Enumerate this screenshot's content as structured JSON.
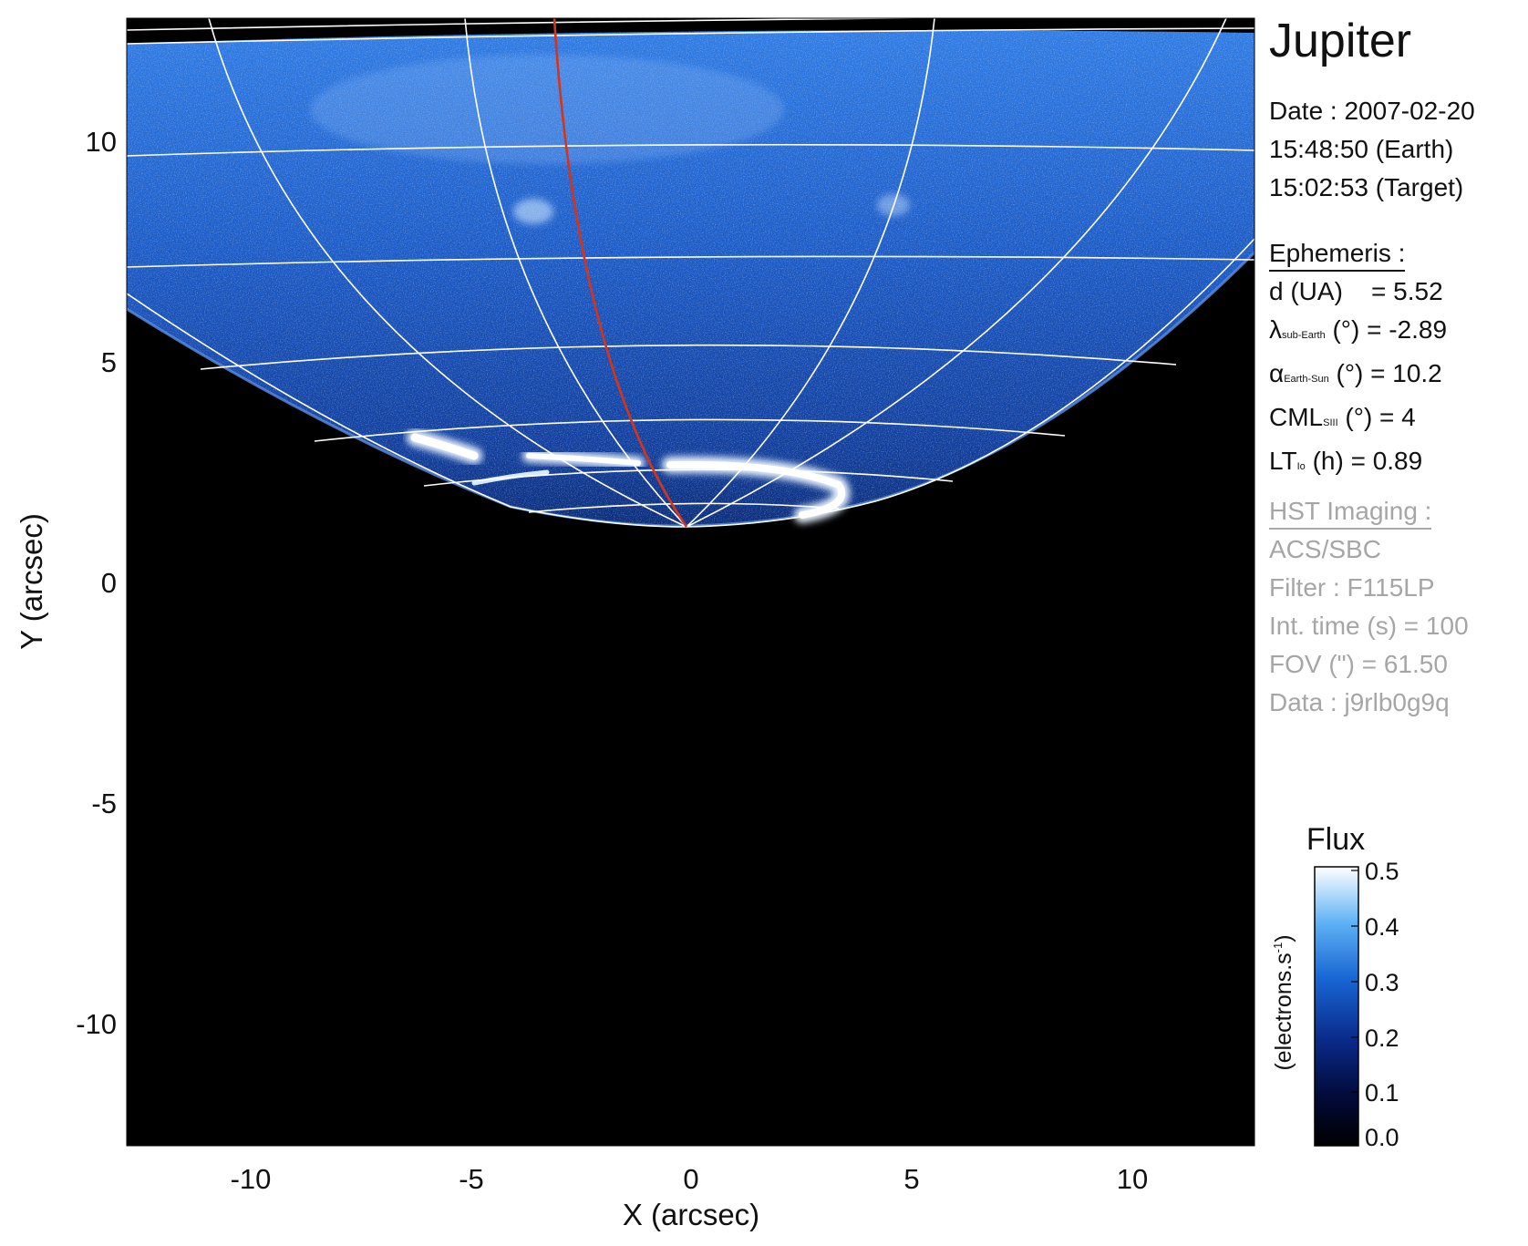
{
  "title": "Jupiter",
  "date": {
    "line1": "Date : 2007-02-20",
    "line2": "15:48:50 (Earth)",
    "line3": "15:02:53 (Target)"
  },
  "ephemeris": {
    "header": "Ephemeris :",
    "d_label": "d (UA)",
    "d_value": "= 5.52",
    "lambda_sym": "λ",
    "lambda_sub": "sub-Earth",
    "lambda_rest": "(°) = -2.89",
    "alpha_sym": "α",
    "alpha_sub": "Earth-Sun",
    "alpha_rest": "(°) = 10.2",
    "cml_label": "CML",
    "cml_sub": "SIII",
    "cml_rest": "(°) = 4",
    "lt_label": "LT",
    "lt_sub": "Io",
    "lt_rest": "(h) = 0.89"
  },
  "hst": {
    "header": "HST Imaging :",
    "instrument": "ACS/SBC",
    "filter": "Filter : F115LP",
    "int_time": "Int. time (s) = 100",
    "fov": "FOV (\") = 61.50",
    "data_id": "Data : j9rlb0g9q"
  },
  "axes": {
    "xlabel": "X (arcsec)",
    "ylabel": "Y (arcsec)",
    "xticks": [
      "-10",
      "-5",
      "0",
      "5",
      "10"
    ],
    "yticks": [
      "10",
      "5",
      "0",
      "-5",
      "-10"
    ]
  },
  "colorbar": {
    "title": "Flux",
    "label_main": "(electrons.s",
    "label_sup": "-1",
    "label_end": ")",
    "ticks": [
      "0.5",
      "0.4",
      "0.3",
      "0.2",
      "0.1",
      "0.0"
    ]
  },
  "colors": {
    "background": "#000000",
    "disk_blue": "#1a57c4",
    "aurora": "#eaf4ff",
    "grid": "#ffffff",
    "io_footprint": "#d63418"
  }
}
